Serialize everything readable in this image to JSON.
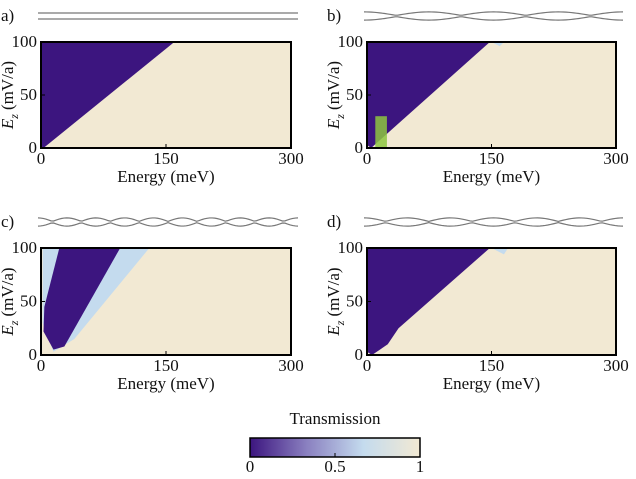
{
  "chart_data": [
    {
      "type": "heatmap",
      "panel": "a)",
      "xlabel": "Energy (meV)",
      "ylabel": {
        "symbol": "E",
        "subscript": "z",
        "unit": "(mV/a)"
      },
      "xlim": [
        0,
        300
      ],
      "ylim": [
        0,
        100
      ],
      "xticks": [
        0,
        150,
        300
      ],
      "yticks": [
        0,
        50,
        100
      ],
      "regions": [
        {
          "value": 1,
          "points": [
            [
              0,
              0
            ],
            [
              300,
              0
            ],
            [
              300,
              100
            ],
            [
              0,
              100
            ]
          ]
        },
        {
          "value": 0,
          "points": [
            [
              0,
              2
            ],
            [
              0,
              100
            ],
            [
              160,
              100
            ],
            [
              3,
              0
            ]
          ]
        }
      ]
    },
    {
      "type": "heatmap",
      "panel": "b)",
      "xlabel": "Energy (meV)",
      "ylabel": {
        "symbol": "E",
        "subscript": "z",
        "unit": "(mV/a)"
      },
      "xlim": [
        0,
        300
      ],
      "ylim": [
        0,
        100
      ],
      "xticks": [
        0,
        150,
        300
      ],
      "yticks": [
        0,
        50,
        100
      ],
      "regions": [
        {
          "value": 1,
          "points": [
            [
              0,
              0
            ],
            [
              300,
              0
            ],
            [
              300,
              100
            ],
            [
              0,
              100
            ]
          ]
        },
        {
          "value": 0,
          "points": [
            [
              0,
              3
            ],
            [
              0,
              100
            ],
            [
              148,
              100
            ],
            [
              12,
              5
            ],
            [
              5,
              0
            ]
          ]
        },
        {
          "value": 0.6,
          "points": [
            [
              150,
              100
            ],
            [
              165,
              100
            ],
            [
              160,
              96
            ]
          ]
        }
      ]
    },
    {
      "type": "heatmap",
      "panel": "c)",
      "xlabel": "Energy (meV)",
      "ylabel": {
        "symbol": "E",
        "subscript": "z",
        "unit": "(mV/a)"
      },
      "xlim": [
        0,
        300
      ],
      "ylim": [
        0,
        100
      ],
      "xticks": [
        0,
        150,
        300
      ],
      "yticks": [
        0,
        50,
        100
      ],
      "regions": [
        {
          "value": 1,
          "points": [
            [
              0,
              0
            ],
            [
              300,
              0
            ],
            [
              300,
              100
            ],
            [
              0,
              100
            ]
          ]
        },
        {
          "value": 0.7,
          "points": [
            [
              2,
              30
            ],
            [
              2,
              100
            ],
            [
              130,
              100
            ],
            [
              40,
              15
            ],
            [
              15,
              3
            ]
          ]
        },
        {
          "value": 0,
          "points": [
            [
              15,
              5
            ],
            [
              3,
              22
            ],
            [
              4,
              45
            ],
            [
              22,
              100
            ],
            [
              95,
              100
            ],
            [
              28,
              8
            ]
          ]
        }
      ]
    },
    {
      "type": "heatmap",
      "panel": "d)",
      "xlabel": "Energy (meV)",
      "ylabel": {
        "symbol": "E",
        "subscript": "z",
        "unit": "(mV/a)"
      },
      "xlim": [
        0,
        300
      ],
      "ylim": [
        0,
        100
      ],
      "xticks": [
        0,
        150,
        300
      ],
      "yticks": [
        0,
        50,
        100
      ],
      "regions": [
        {
          "value": 1,
          "points": [
            [
              0,
              0
            ],
            [
              300,
              0
            ],
            [
              300,
              100
            ],
            [
              0,
              100
            ]
          ]
        },
        {
          "value": 0,
          "points": [
            [
              0,
              3
            ],
            [
              0,
              100
            ],
            [
              148,
              100
            ],
            [
              38,
              25
            ],
            [
              25,
              10
            ],
            [
              6,
              0
            ]
          ]
        },
        {
          "value": 0.6,
          "points": [
            [
              150,
              100
            ],
            [
              170,
              100
            ],
            [
              165,
              94
            ]
          ]
        }
      ]
    },
    {
      "type": "colorbar",
      "title": "Transmission",
      "xlim": [
        0,
        1
      ],
      "xticks": [
        0,
        0.5,
        1
      ],
      "colormap": [
        "#3c157f",
        "#8a80c0",
        "#c4dbee",
        "#f2e9d3"
      ]
    }
  ]
}
